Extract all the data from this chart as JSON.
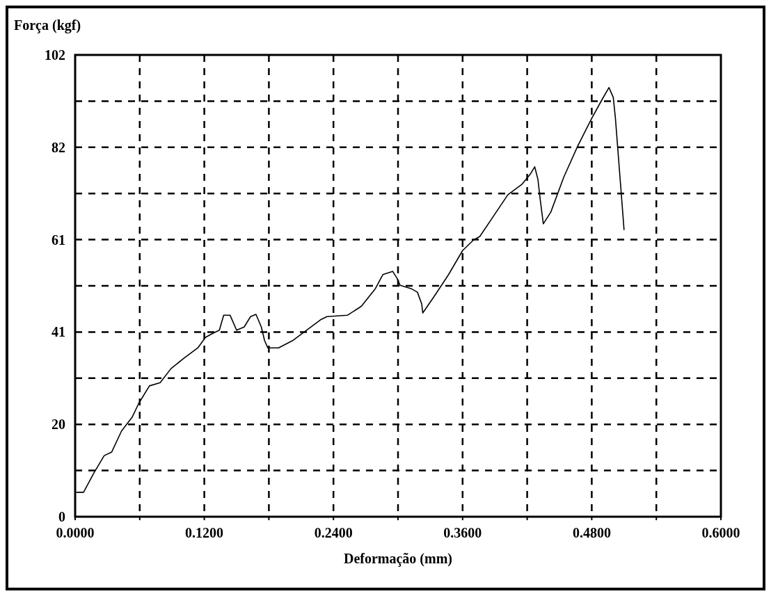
{
  "chart_data": {
    "type": "line",
    "xlabel": "Deformação (mm)",
    "ylabel": "Força (kgf)",
    "x": [
      0.0013,
      0.0078,
      0.0175,
      0.027,
      0.034,
      0.043,
      0.053,
      0.059,
      0.069,
      0.079,
      0.089,
      0.101,
      0.114,
      0.121,
      0.127,
      0.134,
      0.138,
      0.144,
      0.15,
      0.157,
      0.163,
      0.168,
      0.173,
      0.176,
      0.179,
      0.189,
      0.202,
      0.215,
      0.228,
      0.234,
      0.253,
      0.266,
      0.279,
      0.286,
      0.295,
      0.299,
      0.302,
      0.312,
      0.318,
      0.322,
      0.323,
      0.334,
      0.347,
      0.36,
      0.37,
      0.376,
      0.389,
      0.402,
      0.415,
      0.423,
      0.427,
      0.43,
      0.432,
      0.435,
      0.442,
      0.454,
      0.467,
      0.48,
      0.489,
      0.496,
      0.5,
      0.502,
      0.505,
      0.508,
      0.51
    ],
    "series": [
      {
        "color": "#000000",
        "values": [
          5.4,
          5.4,
          9.7,
          13.5,
          14.3,
          18.9,
          22,
          25,
          28.9,
          29.6,
          32.7,
          35,
          37.3,
          39.6,
          40.4,
          41.2,
          44.5,
          44.5,
          41.2,
          41.9,
          44.2,
          44.7,
          41.9,
          38.9,
          37.3,
          37.3,
          38.9,
          41.2,
          43.5,
          44.2,
          44.5,
          46.5,
          50.4,
          53.5,
          54.2,
          52.7,
          51.1,
          50.4,
          49.6,
          47,
          45,
          48.8,
          53.5,
          58.8,
          61.1,
          61.9,
          66.5,
          71.1,
          73.4,
          75.7,
          77.3,
          74.5,
          70.3,
          64.7,
          67.3,
          75,
          81.9,
          88,
          91.9,
          94.8,
          92.6,
          88,
          78.8,
          69.6,
          63.4
        ]
      }
    ],
    "xlim": [
      0,
      0.6
    ],
    "xticks": [
      {
        "value": 0,
        "label": "0.0000"
      },
      {
        "value": 0.06,
        "label": null
      },
      {
        "value": 0.12,
        "label": "0.1200"
      },
      {
        "value": 0.18,
        "label": null
      },
      {
        "value": 0.24,
        "label": "0.2400"
      },
      {
        "value": 0.3,
        "label": null
      },
      {
        "value": 0.36,
        "label": "0.3600"
      },
      {
        "value": 0.42,
        "label": null
      },
      {
        "value": 0.48,
        "label": "0.4800"
      },
      {
        "value": 0.54,
        "label": null
      },
      {
        "value": 0.6,
        "label": "0.6000"
      }
    ],
    "ylim": [
      0,
      102
    ],
    "yticks": [
      0,
      {
        "value": 10.2,
        "label": null
      },
      {
        "value": 20.4,
        "label": "20"
      },
      {
        "value": 30.6,
        "label": null
      },
      {
        "value": 40.8,
        "label": "41"
      },
      {
        "value": 51,
        "label": null
      },
      {
        "value": 61.2,
        "label": "61"
      },
      {
        "value": 71.4,
        "label": null
      },
      {
        "value": 81.6,
        "label": "82"
      },
      {
        "value": 91.8,
        "label": null
      },
      102
    ],
    "grid": true,
    "line_style": "solid",
    "marker": "none"
  }
}
